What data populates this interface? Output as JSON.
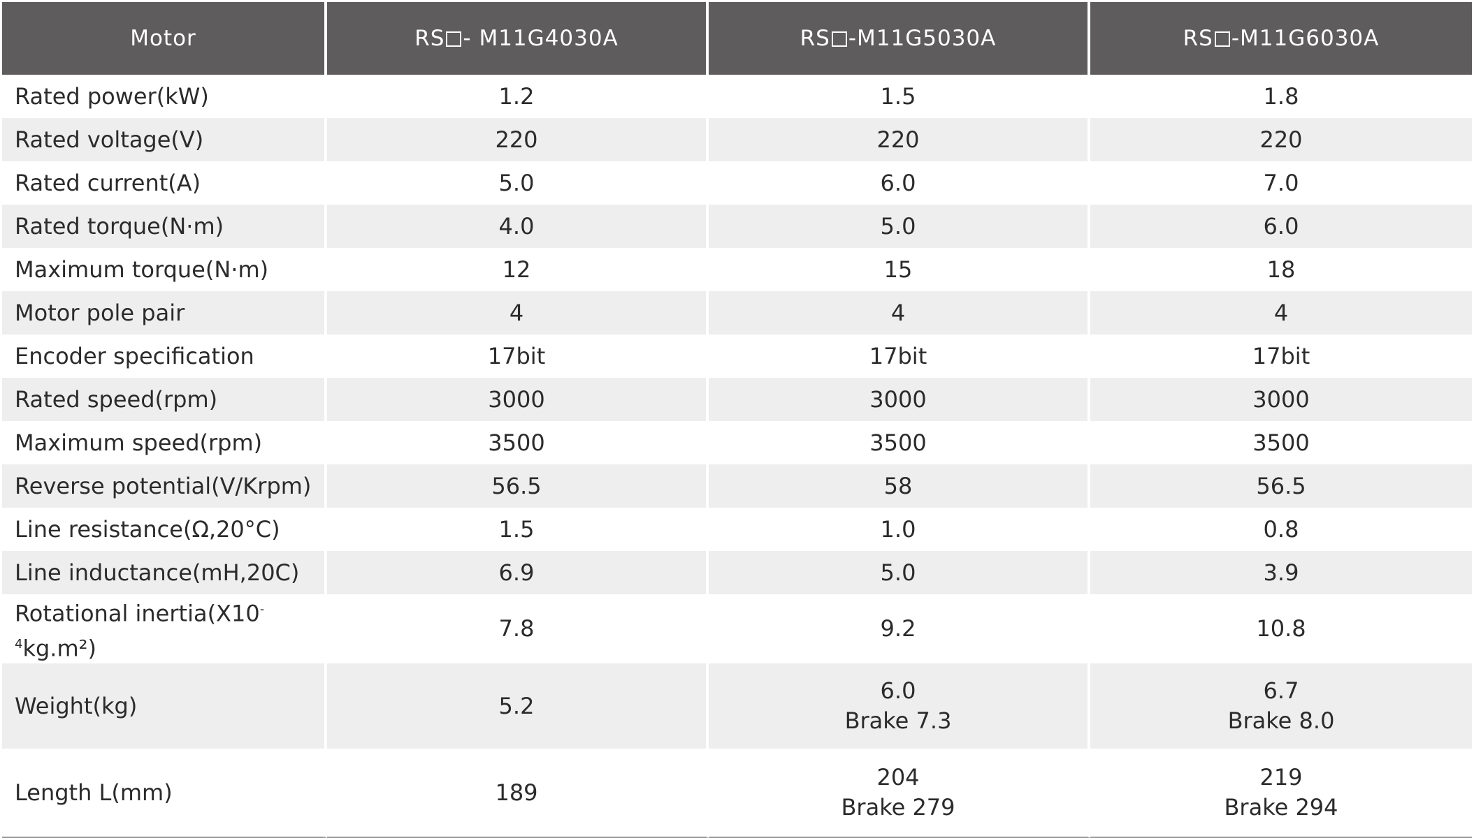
{
  "header": {
    "label": "Motor",
    "models": [
      {
        "prefix": "RS",
        "suffix": "- M11G4030A"
      },
      {
        "prefix": "RS",
        "suffix": "-M11G5030A"
      },
      {
        "prefix": "RS",
        "suffix": "-M11G6030A"
      }
    ]
  },
  "rows": [
    {
      "label": "Rated power(kW)",
      "values": [
        "1.2",
        "1.5",
        "1.8"
      ]
    },
    {
      "label": "Rated voltage(V)",
      "values": [
        "220",
        "220",
        "220"
      ]
    },
    {
      "label": "Rated current(A)",
      "values": [
        "5.0",
        "6.0",
        "7.0"
      ]
    },
    {
      "label": "Rated torque(N·m)",
      "values": [
        "4.0",
        "5.0",
        "6.0"
      ]
    },
    {
      "label": "Maximum torque(N·m)",
      "values": [
        "12",
        "15",
        "18"
      ]
    },
    {
      "label": "Motor pole pair",
      "values": [
        "4",
        "4",
        "4"
      ]
    },
    {
      "label": "Encoder specification",
      "values": [
        "17bit",
        "17bit",
        "17bit"
      ]
    },
    {
      "label": "Rated speed(rpm)",
      "values": [
        "3000",
        "3000",
        "3000"
      ]
    },
    {
      "label": "Maximum speed(rpm)",
      "values": [
        "3500",
        "3500",
        "3500"
      ]
    },
    {
      "label": "Reverse potential(V/Krpm)",
      "values": [
        "56.5",
        "58",
        "56.5"
      ]
    },
    {
      "label": "Line resistance(Ω,20°C)",
      "values": [
        "1.5",
        "1.0",
        "0.8"
      ]
    },
    {
      "label": "Line inductance(mH,20C)",
      "values": [
        "6.9",
        "5.0",
        "3.9"
      ]
    },
    {
      "label_pre": "Rotational inertia(X10",
      "label_sup": "-4",
      "label_post": "kg.m²)",
      "values": [
        "7.8",
        "9.2",
        "10.8"
      ]
    }
  ],
  "weight": {
    "label": "Weight(kg)",
    "values": [
      {
        "main": "5.2",
        "brake": ""
      },
      {
        "main": "6.0",
        "brake": "Brake 7.3"
      },
      {
        "main": "6.7",
        "brake": "Brake 8.0"
      }
    ]
  },
  "length": {
    "label": "Length L(mm)",
    "values": [
      {
        "main": "189",
        "brake": ""
      },
      {
        "main": "204",
        "brake": "Brake 279"
      },
      {
        "main": "219",
        "brake": "Brake 294"
      }
    ]
  }
}
